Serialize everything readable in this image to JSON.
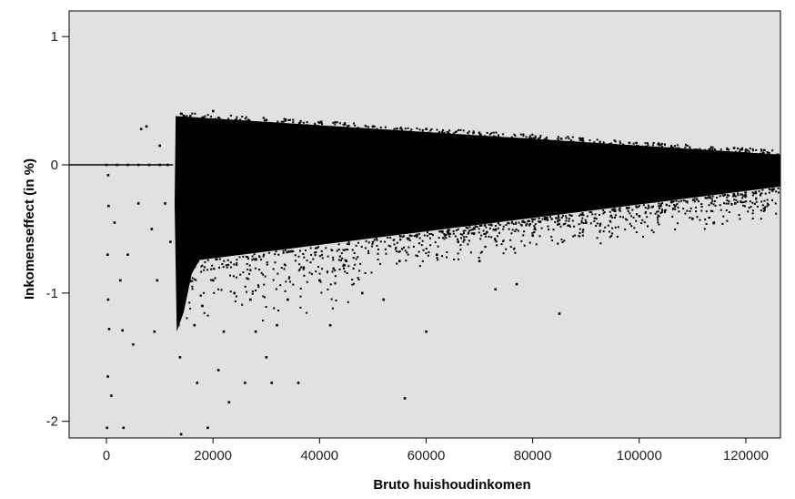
{
  "chart_data": {
    "type": "scatter",
    "title": "",
    "xlabel": "Bruto huishoudinkomen",
    "ylabel": "Inkomenseffect (in %)",
    "xlim": [
      -7000,
      126500
    ],
    "ylim": [
      -2.13,
      1.2
    ],
    "x_ticks": [
      0,
      20000,
      40000,
      60000,
      80000,
      100000,
      120000
    ],
    "x_tick_labels": [
      "0",
      "20000",
      "40000",
      "60000",
      "80000",
      "100000",
      "120000"
    ],
    "y_ticks": [
      1,
      0,
      -1,
      -2
    ],
    "y_tick_labels": [
      "1",
      "0",
      "-1",
      "-2"
    ],
    "grid": false,
    "legend": "none",
    "background_color": "#e1e1e1",
    "point_color": "#000000",
    "series": [
      {
        "name": "",
        "points": [
          [
            0,
            0
          ],
          [
            2000,
            0
          ],
          [
            4000,
            0
          ],
          [
            6000,
            0
          ],
          [
            8000,
            0
          ],
          [
            10000,
            0
          ],
          [
            11500,
            0
          ],
          [
            300,
            -0.08
          ],
          [
            400,
            -0.32
          ],
          [
            200,
            -0.7
          ],
          [
            300,
            -1.05
          ],
          [
            500,
            -1.28
          ],
          [
            250,
            -1.65
          ],
          [
            900,
            -1.8
          ],
          [
            100,
            -2.05
          ],
          [
            1500,
            -0.45
          ],
          [
            2600,
            -0.9
          ],
          [
            3000,
            -1.29
          ],
          [
            3200,
            -2.05
          ],
          [
            4000,
            -0.7
          ],
          [
            5000,
            -1.4
          ],
          [
            6000,
            -0.3
          ],
          [
            6500,
            0.28
          ],
          [
            7500,
            0.3
          ],
          [
            8500,
            -0.5
          ],
          [
            9000,
            -1.3
          ],
          [
            9500,
            -0.9
          ],
          [
            10000,
            0.15
          ],
          [
            11000,
            -0.3
          ],
          [
            12000,
            -0.6
          ],
          [
            13500,
            -0.9
          ],
          [
            13500,
            -1.25
          ],
          [
            13800,
            -1.5
          ],
          [
            14000,
            -2.1
          ],
          [
            15000,
            -0.8
          ],
          [
            16500,
            -1.25
          ],
          [
            17000,
            -1.7
          ],
          [
            18000,
            -1.1
          ],
          [
            19000,
            -2.05
          ],
          [
            20000,
            -0.9
          ],
          [
            21000,
            -1.6
          ],
          [
            22000,
            -1.3
          ],
          [
            23000,
            -1.85
          ],
          [
            24000,
            -1.0
          ],
          [
            26000,
            -1.7
          ],
          [
            27000,
            -1.05
          ],
          [
            28000,
            -1.3
          ],
          [
            30000,
            -1.5
          ],
          [
            31000,
            -1.7
          ],
          [
            32000,
            -1.25
          ],
          [
            34000,
            -1.05
          ],
          [
            36000,
            -1.7
          ],
          [
            37000,
            -0.8
          ],
          [
            40000,
            -0.9
          ],
          [
            42000,
            -1.25
          ],
          [
            45000,
            -0.75
          ],
          [
            48000,
            -1.0
          ],
          [
            52000,
            -1.05
          ],
          [
            55000,
            -0.75
          ],
          [
            56000,
            -1.82
          ],
          [
            60000,
            -1.3
          ],
          [
            62000,
            -0.7
          ],
          [
            66000,
            -0.6
          ],
          [
            70000,
            -0.75
          ],
          [
            73000,
            -0.97
          ],
          [
            77000,
            -0.93
          ],
          [
            80000,
            -0.55
          ],
          [
            85000,
            -1.16
          ],
          [
            90000,
            -0.45
          ],
          [
            95000,
            -0.35
          ],
          [
            100000,
            -0.4
          ],
          [
            104000,
            -0.32
          ],
          [
            110000,
            -0.42
          ],
          [
            114000,
            -0.45
          ],
          [
            118000,
            -0.3
          ],
          [
            125000,
            -0.2
          ],
          [
            14000,
            0.4
          ],
          [
            20000,
            0.42
          ],
          [
            30000,
            0.35
          ],
          [
            40000,
            0.33
          ],
          [
            50000,
            0.3
          ],
          [
            60000,
            0.28
          ],
          [
            70000,
            0.25
          ],
          [
            80000,
            0.2
          ],
          [
            90000,
            0.16
          ],
          [
            100000,
            0.14
          ],
          [
            110000,
            0.11
          ],
          [
            120000,
            0.1
          ],
          [
            126000,
            0.08
          ]
        ]
      }
    ]
  }
}
